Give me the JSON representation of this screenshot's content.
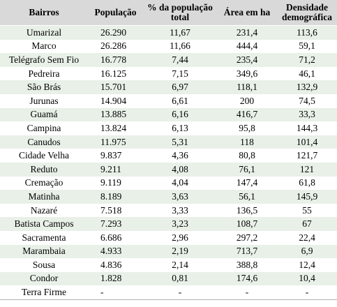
{
  "table": {
    "headers": {
      "bairros": "Bairros",
      "populacao": "População",
      "pct_line1": "% da população",
      "pct_line2": "total",
      "area": "Área em ha",
      "dens_line1": "Densidade",
      "dens_line2": "demográfica"
    },
    "rows": [
      {
        "bairro": "Umarizal",
        "populacao": "26.290",
        "pct": "11,67",
        "area": "231,4",
        "densidade": "113,6"
      },
      {
        "bairro": "Marco",
        "populacao": "26.286",
        "pct": "11,66",
        "area": "444,4",
        "densidade": "59,1"
      },
      {
        "bairro": "Telégrafo Sem Fio",
        "populacao": "16.778",
        "pct": "7,44",
        "area": "235,4",
        "densidade": "71,2"
      },
      {
        "bairro": "Pedreira",
        "populacao": "16.125",
        "pct": "7,15",
        "area": "349,6",
        "densidade": "46,1"
      },
      {
        "bairro": "São Brás",
        "populacao": "15.701",
        "pct": "6,97",
        "area": "118,1",
        "densidade": "132,9"
      },
      {
        "bairro": "Jurunas",
        "populacao": "14.904",
        "pct": "6,61",
        "area": "200",
        "densidade": "74,5"
      },
      {
        "bairro": "Guamá",
        "populacao": "13.885",
        "pct": "6,16",
        "area": "416,7",
        "densidade": "33,3"
      },
      {
        "bairro": "Campina",
        "populacao": "13.824",
        "pct": "6,13",
        "area": "95,8",
        "densidade": "144,3"
      },
      {
        "bairro": "Canudos",
        "populacao": "11.975",
        "pct": "5,31",
        "area": "118",
        "densidade": "101,4"
      },
      {
        "bairro": "Cidade Velha",
        "populacao": "9.837",
        "pct": "4,36",
        "area": "80,8",
        "densidade": "121,7"
      },
      {
        "bairro": "Reduto",
        "populacao": "9.211",
        "pct": "4,08",
        "area": "76,1",
        "densidade": "121"
      },
      {
        "bairro": "Cremação",
        "populacao": "9.119",
        "pct": "4,04",
        "area": "147,4",
        "densidade": "61,8"
      },
      {
        "bairro": "Matinha",
        "populacao": "8.189",
        "pct": "3,63",
        "area": "56,1",
        "densidade": "145,9"
      },
      {
        "bairro": "Nazaré",
        "populacao": "7.518",
        "pct": "3,33",
        "area": "136,5",
        "densidade": "55"
      },
      {
        "bairro": "Batista Campos",
        "populacao": "7.293",
        "pct": "3,23",
        "area": "108,7",
        "densidade": "67"
      },
      {
        "bairro": "Sacramenta",
        "populacao": "6.686",
        "pct": "2,96",
        "area": "297,2",
        "densidade": "22,4"
      },
      {
        "bairro": "Marambaia",
        "populacao": "4.933",
        "pct": "2,19",
        "area": "713,7",
        "densidade": "6,9"
      },
      {
        "bairro": "Sousa",
        "populacao": "4.836",
        "pct": "2,14",
        "area": "388,8",
        "densidade": "12,4"
      },
      {
        "bairro": "Condor",
        "populacao": "1.828",
        "pct": "0,81",
        "area": "174,6",
        "densidade": "10,4"
      },
      {
        "bairro": "Terra Firme",
        "populacao": "-",
        "pct": "-",
        "area": "-",
        "densidade": "-"
      }
    ]
  },
  "colors": {
    "header_bg": "#d9d9d9",
    "row_shade": "#e8f0e8",
    "row_plain": "#ffffff"
  }
}
